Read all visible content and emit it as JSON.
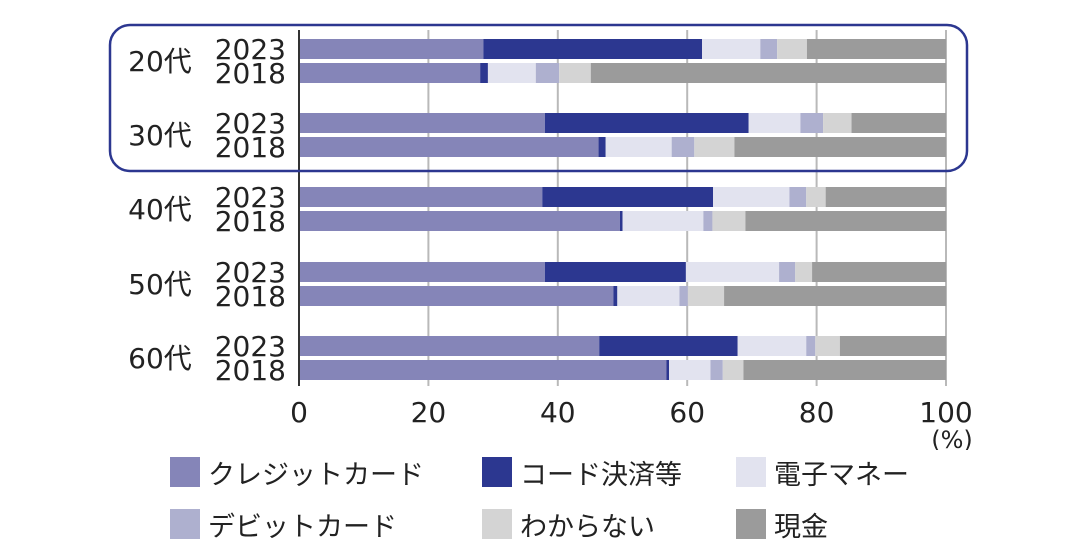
{
  "chart_data": {
    "type": "bar",
    "orientation": "horizontal",
    "stacked": true,
    "groups": [
      {
        "age_label": "20代",
        "highlighted": true,
        "rows": [
          {
            "year": "2023",
            "values": [
              28.5,
              33.8,
              9.0,
              2.6,
              4.6,
              21.5
            ]
          },
          {
            "year": "2018",
            "values": [
              28.0,
              1.2,
              7.4,
              3.6,
              4.9,
              54.9
            ]
          }
        ]
      },
      {
        "age_label": "30代",
        "highlighted": true,
        "rows": [
          {
            "year": "2023",
            "values": [
              38.0,
              31.5,
              8.0,
              3.5,
              4.4,
              14.6
            ]
          },
          {
            "year": "2018",
            "values": [
              46.3,
              1.1,
              10.2,
              3.5,
              6.2,
              32.7
            ]
          }
        ]
      },
      {
        "age_label": "40代",
        "highlighted": false,
        "rows": [
          {
            "year": "2023",
            "values": [
              37.6,
              26.4,
              11.8,
              2.6,
              3.0,
              18.6
            ]
          },
          {
            "year": "2018",
            "values": [
              49.6,
              0.4,
              12.5,
              1.4,
              5.1,
              31.0
            ]
          }
        ]
      },
      {
        "age_label": "50代",
        "highlighted": false,
        "rows": [
          {
            "year": "2023",
            "values": [
              38.0,
              21.8,
              14.4,
              2.5,
              2.6,
              20.7
            ]
          },
          {
            "year": "2018",
            "values": [
              48.6,
              0.6,
              9.6,
              1.3,
              5.6,
              34.3
            ]
          }
        ]
      },
      {
        "age_label": "60代",
        "highlighted": false,
        "rows": [
          {
            "year": "2023",
            "values": [
              46.4,
              21.4,
              10.6,
              1.4,
              3.8,
              16.4
            ]
          },
          {
            "year": "2018",
            "values": [
              56.8,
              0.4,
              6.4,
              1.9,
              3.2,
              31.3
            ]
          }
        ]
      }
    ],
    "series": [
      {
        "name": "クレジットカード",
        "color": "#8585b8"
      },
      {
        "name": "コード決済等",
        "color": "#2c3790"
      },
      {
        "name": "電子マネー",
        "color": "#e2e3ef"
      },
      {
        "name": "デビットカード",
        "color": "#aeb0cf"
      },
      {
        "name": "わからない",
        "color": "#d4d4d4"
      },
      {
        "name": "現金",
        "color": "#9b9b9b"
      }
    ],
    "xlim": [
      0,
      100
    ],
    "x_ticks": [
      "0",
      "20",
      "40",
      "60",
      "80",
      "100"
    ],
    "x_unit": "(%)",
    "grid": true,
    "highlight_color": "#2c3790",
    "legend_position": "bottom"
  }
}
